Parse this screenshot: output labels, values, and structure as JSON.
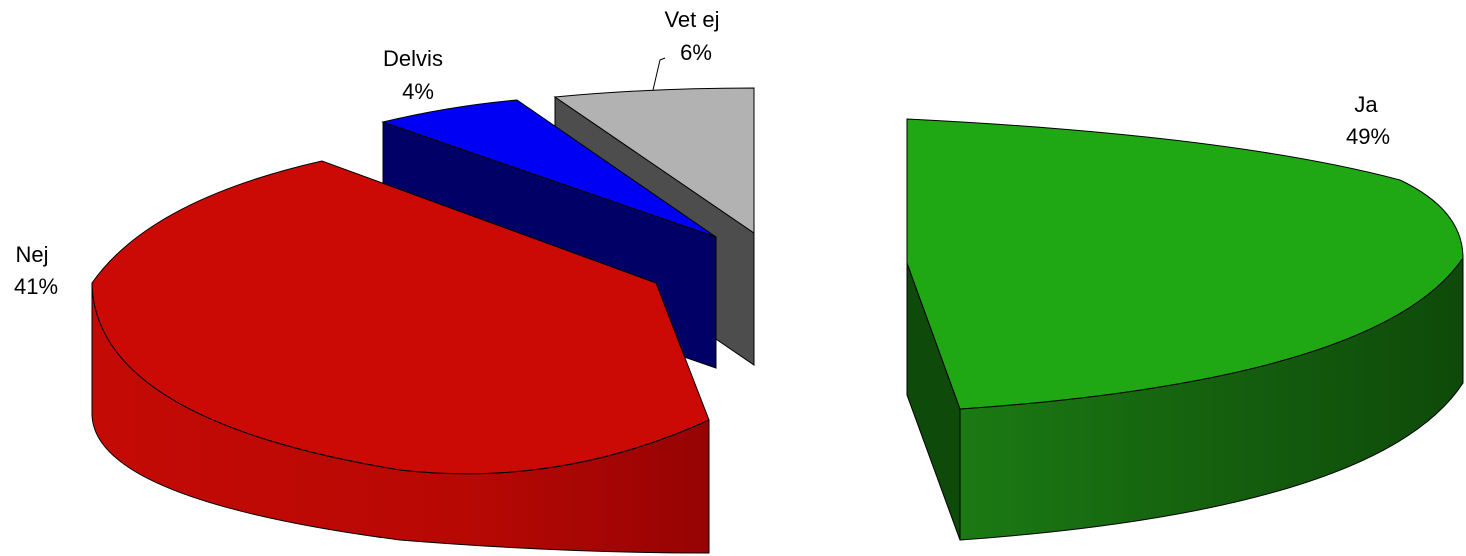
{
  "chart_data": {
    "type": "pie",
    "three_d": true,
    "exploded": true,
    "legend": "none",
    "slices": [
      {
        "label": "Ja",
        "value": 49,
        "display": "49%",
        "color": "#1FA714",
        "side_dark": "#0E4A0A",
        "side_light": "#1B7A13"
      },
      {
        "label": "Nej",
        "value": 41,
        "display": "41%",
        "color": "#CC0A05",
        "side_dark": "#960303",
        "side_light": "#C40A05"
      },
      {
        "label": "Delvis",
        "value": 4,
        "display": "4%",
        "color": "#0000F5",
        "side_dark": "#000066",
        "side_light": "#000066"
      },
      {
        "label": "Vet ej",
        "value": 6,
        "display": "6%",
        "color": "#B2B2B2",
        "side_dark": "#4D4D4D",
        "side_light": "#4D4D4D"
      }
    ]
  }
}
